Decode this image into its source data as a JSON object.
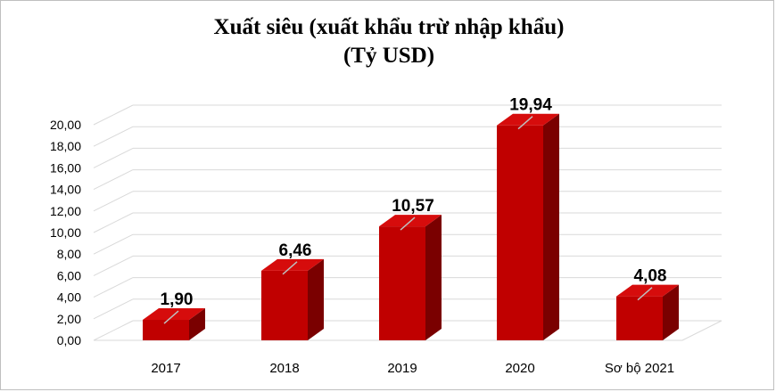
{
  "chart_data": {
    "type": "bar",
    "title": "Xuất siêu (xuất khẩu trừ nhập khẩu)",
    "subtitle": "(Tỷ USD)",
    "categories": [
      "2017",
      "2018",
      "2019",
      "2020",
      "Sơ bộ 2021"
    ],
    "values": [
      1.9,
      6.46,
      10.57,
      19.94,
      4.08
    ],
    "data_labels": [
      "1,90",
      "6,46",
      "10,57",
      "19,94",
      "4,08"
    ],
    "ylim": [
      0,
      20
    ],
    "y_ticks": [
      "0,00",
      "2,00",
      "4,00",
      "6,00",
      "8,00",
      "10,00",
      "12,00",
      "14,00",
      "16,00",
      "18,00",
      "20,00"
    ],
    "xlabel": "",
    "ylabel": "",
    "grid": true,
    "style": "3d-column",
    "colors": {
      "bar_front": "#c00000",
      "bar_side": "#7a0000",
      "bar_top": "#d60c0c",
      "grid": "#d9d9d9"
    }
  }
}
